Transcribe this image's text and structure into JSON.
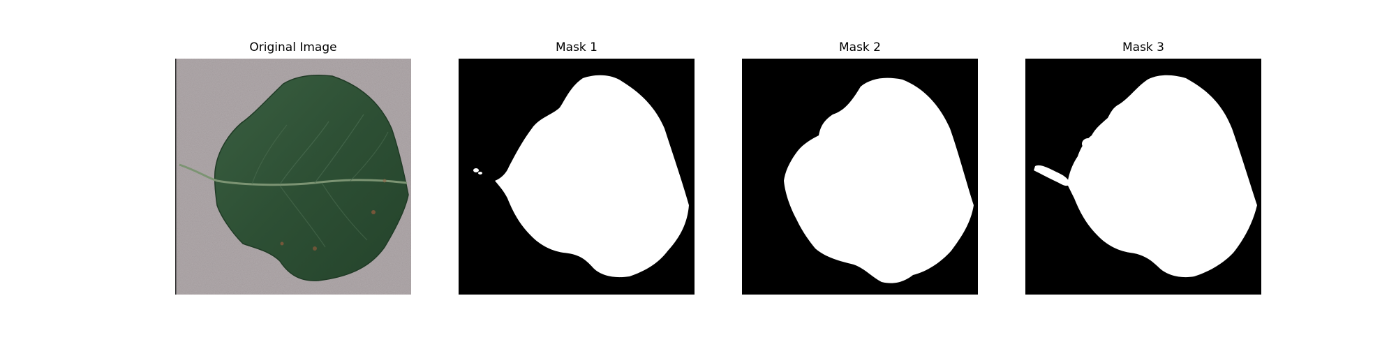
{
  "panels": [
    {
      "title": "Original Image"
    },
    {
      "title": "Mask 1"
    },
    {
      "title": "Mask 2"
    },
    {
      "title": "Mask 3"
    }
  ],
  "colors": {
    "background": "#ffffff",
    "mask_background": "#000000",
    "mask_foreground": "#ffffff",
    "photo_background": "#a29a9c",
    "leaf_green": "#2e5236",
    "leaf_vein": "#7c9473"
  }
}
